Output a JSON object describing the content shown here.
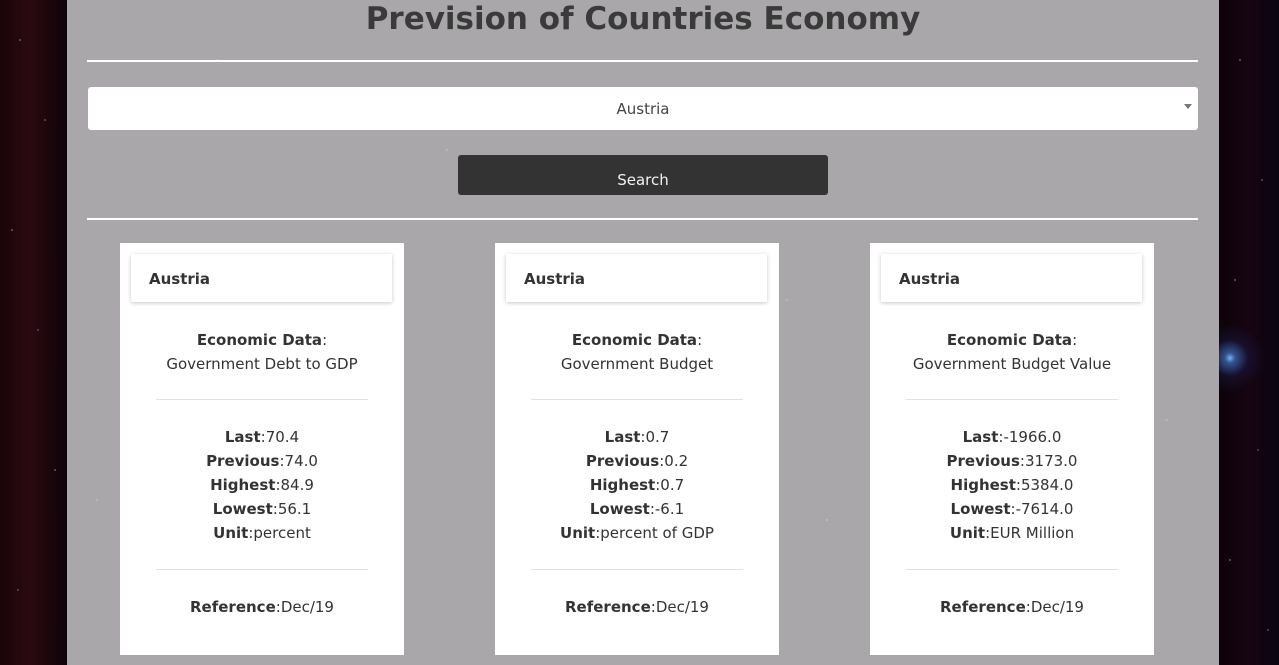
{
  "page": {
    "title": "Prevision of Countries Economy"
  },
  "country_select": {
    "selected": "Austria"
  },
  "search_button": {
    "label": "Search"
  },
  "field_labels": {
    "economic_data": "Economic Data",
    "last": "Last",
    "previous": "Previous",
    "highest": "Highest",
    "lowest": "Lowest",
    "unit": "Unit",
    "reference": "Reference"
  },
  "cards": [
    {
      "country": "Austria",
      "indicator": "Government Debt to GDP",
      "last": "70.4",
      "previous": "74.0",
      "highest": "84.9",
      "lowest": "56.1",
      "unit": "percent",
      "reference": "Dec/19"
    },
    {
      "country": "Austria",
      "indicator": "Government Budget",
      "last": "0.7",
      "previous": "0.2",
      "highest": "0.7",
      "lowest": "-6.1",
      "unit": "percent of GDP",
      "reference": "Dec/19"
    },
    {
      "country": "Austria",
      "indicator": "Government Budget Value",
      "last": "-1966.0",
      "previous": "3173.0",
      "highest": "5384.0",
      "lowest": "-7614.0",
      "unit": "EUR Million",
      "reference": "Dec/19"
    }
  ]
}
